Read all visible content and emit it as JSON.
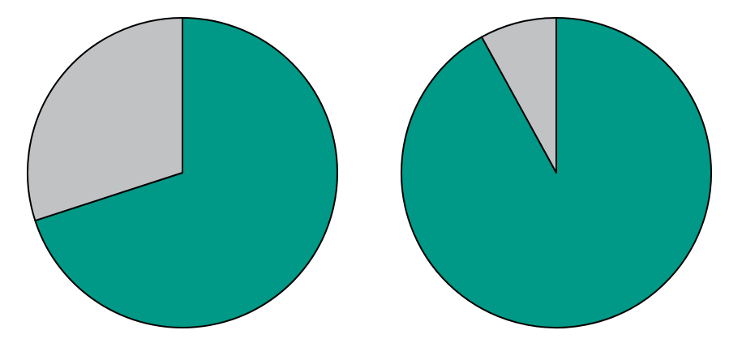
{
  "chart_data": [
    {
      "type": "pie",
      "values": [
        70,
        30
      ],
      "colors": [
        "#009886",
        "#c1c2c4"
      ]
    },
    {
      "type": "pie",
      "values": [
        92,
        8
      ],
      "colors": [
        "#009886",
        "#c1c2c4"
      ]
    }
  ]
}
